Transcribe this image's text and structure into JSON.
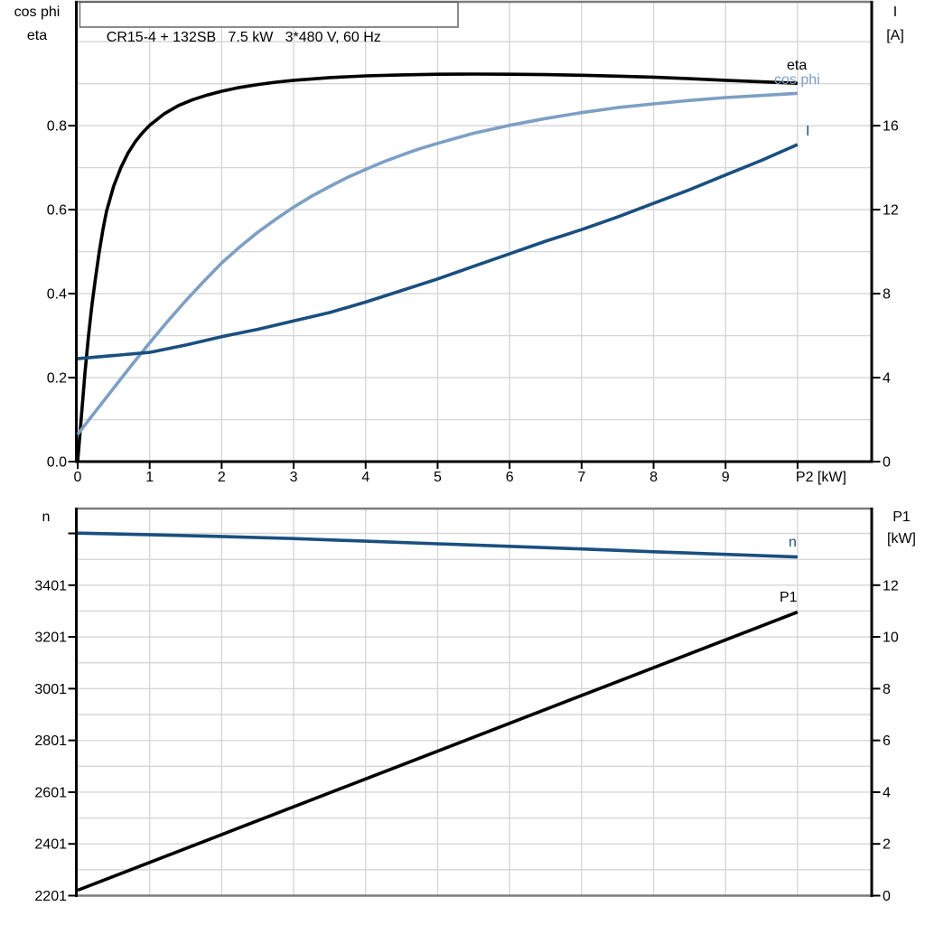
{
  "title": "CR15-4 + 132SB   7.5 kW   3*480 V, 60 Hz",
  "colors": {
    "eta": "#000000",
    "cos_phi": "#7d9fc3",
    "current": "#1a4f7f",
    "speed": "#1a4f7f",
    "p1": "#000000",
    "grid": "#d6d6d6",
    "frame": "#7d7d7d",
    "axis": "#000000"
  },
  "corner_labels": {
    "top_left_1": "cos phi",
    "top_left_2": "eta",
    "top_right_1": "I",
    "top_right_2": "[A]",
    "bottom_left_1": "n",
    "bottom_right_1": "P1",
    "bottom_right_2": "[kW]"
  },
  "chart_data": [
    {
      "id": "top",
      "type": "line",
      "title": "CR15-4 + 132SB   7.5 kW   3*480 V, 60 Hz",
      "xlabel": "P2 [kW]",
      "x": {
        "min": 0,
        "max": 11.03,
        "gridlines": [
          1,
          2,
          3,
          4,
          5,
          6,
          7,
          8,
          9,
          10
        ],
        "ticks": [
          {
            "v": 0,
            "label": "0"
          },
          {
            "v": 1,
            "label": "1"
          },
          {
            "v": 2,
            "label": "2"
          },
          {
            "v": 3,
            "label": "3"
          },
          {
            "v": 4,
            "label": "4"
          },
          {
            "v": 5,
            "label": "5"
          },
          {
            "v": 6,
            "label": "6"
          },
          {
            "v": 7,
            "label": "7"
          },
          {
            "v": 8,
            "label": "8"
          },
          {
            "v": 9,
            "label": "9"
          },
          {
            "v": 10,
            "label": "P2 [kW]",
            "align": "start"
          }
        ]
      },
      "y_left": {
        "name": "cos phi / eta",
        "min": 0,
        "max": 1.095,
        "gridlines": [
          0.1,
          0.2,
          0.3,
          0.4,
          0.5,
          0.6,
          0.7,
          0.8,
          0.9,
          1.0
        ],
        "ticks": [
          {
            "v": 0,
            "label": "0.0"
          },
          {
            "v": 0.2,
            "label": "0.2"
          },
          {
            "v": 0.4,
            "label": "0.4"
          },
          {
            "v": 0.6,
            "label": "0.6"
          },
          {
            "v": 0.8,
            "label": "0.8"
          }
        ]
      },
      "y_right": {
        "name": "I [A]",
        "min": 0,
        "max": 21.9,
        "ticks": [
          {
            "v": 0,
            "label": "0"
          },
          {
            "v": 4,
            "label": "4"
          },
          {
            "v": 8,
            "label": "8"
          },
          {
            "v": 12,
            "label": "12"
          },
          {
            "v": 16,
            "label": "16"
          }
        ]
      },
      "series": [
        {
          "name": "eta",
          "axis": "left",
          "color_key": "eta",
          "points": [
            [
              0,
              0
            ],
            [
              0.05,
              0.105
            ],
            [
              0.1,
              0.21
            ],
            [
              0.15,
              0.3
            ],
            [
              0.2,
              0.375
            ],
            [
              0.25,
              0.44
            ],
            [
              0.3,
              0.5
            ],
            [
              0.35,
              0.552
            ],
            [
              0.4,
              0.596
            ],
            [
              0.5,
              0.656
            ],
            [
              0.6,
              0.7
            ],
            [
              0.7,
              0.735
            ],
            [
              0.8,
              0.762
            ],
            [
              0.9,
              0.783
            ],
            [
              1.0,
              0.801
            ],
            [
              1.2,
              0.828
            ],
            [
              1.4,
              0.848
            ],
            [
              1.6,
              0.862
            ],
            [
              1.8,
              0.873
            ],
            [
              2.0,
              0.882
            ],
            [
              2.25,
              0.891
            ],
            [
              2.5,
              0.898
            ],
            [
              2.75,
              0.9035
            ],
            [
              3.0,
              0.908
            ],
            [
              3.5,
              0.9145
            ],
            [
              4.0,
              0.9185
            ],
            [
              4.5,
              0.921
            ],
            [
              5.0,
              0.9225
            ],
            [
              5.5,
              0.923
            ],
            [
              6.0,
              0.9225
            ],
            [
              6.5,
              0.9215
            ],
            [
              7.0,
              0.92
            ],
            [
              7.5,
              0.918
            ],
            [
              8.0,
              0.9155
            ],
            [
              8.5,
              0.912
            ],
            [
              9.0,
              0.908
            ],
            [
              9.5,
              0.9045
            ],
            [
              10.0,
              0.901
            ]
          ]
        },
        {
          "name": "cos phi",
          "axis": "left",
          "color_key": "cos_phi",
          "points": [
            [
              0,
              0.065
            ],
            [
              0.25,
              0.12
            ],
            [
              0.5,
              0.175
            ],
            [
              0.75,
              0.23
            ],
            [
              1,
              0.283
            ],
            [
              1.25,
              0.334
            ],
            [
              1.5,
              0.383
            ],
            [
              1.75,
              0.429
            ],
            [
              2,
              0.473
            ],
            [
              2.25,
              0.511
            ],
            [
              2.5,
              0.546
            ],
            [
              2.75,
              0.577
            ],
            [
              3,
              0.606
            ],
            [
              3.25,
              0.632
            ],
            [
              3.5,
              0.655
            ],
            [
              3.75,
              0.677
            ],
            [
              4,
              0.696
            ],
            [
              4.25,
              0.714
            ],
            [
              4.5,
              0.73
            ],
            [
              4.75,
              0.745
            ],
            [
              5,
              0.758
            ],
            [
              5.5,
              0.782
            ],
            [
              6,
              0.801
            ],
            [
              6.5,
              0.817
            ],
            [
              7,
              0.831
            ],
            [
              7.5,
              0.843
            ],
            [
              8,
              0.852
            ],
            [
              8.5,
              0.86
            ],
            [
              9,
              0.867
            ],
            [
              9.5,
              0.872
            ],
            [
              10,
              0.877
            ]
          ]
        },
        {
          "name": "I",
          "axis": "right",
          "color_key": "current",
          "points": [
            [
              0,
              4.9
            ],
            [
              0.5,
              5.05
            ],
            [
              1,
              5.2
            ],
            [
              1.5,
              5.55
            ],
            [
              2,
              5.95
            ],
            [
              2.5,
              6.3
            ],
            [
              3,
              6.7
            ],
            [
              3.5,
              7.1
            ],
            [
              4,
              7.6
            ],
            [
              4.5,
              8.15
            ],
            [
              5,
              8.7
            ],
            [
              5.5,
              9.3
            ],
            [
              6,
              9.9
            ],
            [
              6.5,
              10.5
            ],
            [
              7,
              11.05
            ],
            [
              7.5,
              11.65
            ],
            [
              8,
              12.3
            ],
            [
              8.5,
              12.95
            ],
            [
              9,
              13.65
            ],
            [
              9.5,
              14.35
            ],
            [
              10,
              15.1
            ]
          ]
        }
      ]
    },
    {
      "id": "bottom",
      "type": "line",
      "xlabel": "",
      "x": {
        "min": 0,
        "max": 11.03,
        "gridlines": [
          1,
          2,
          3,
          4,
          5,
          6,
          7,
          8,
          9,
          10
        ],
        "ticks": []
      },
      "y_left": {
        "name": "n [rpm]",
        "min": 2201,
        "max": 3697,
        "gridlines": [],
        "extra_tick": 3601,
        "ticks": [
          {
            "v": 3401,
            "label": "3401"
          },
          {
            "v": 3201,
            "label": "3201"
          },
          {
            "v": 3001,
            "label": "3001"
          },
          {
            "v": 2801,
            "label": "2801"
          },
          {
            "v": 2601,
            "label": "2601"
          },
          {
            "v": 2401,
            "label": "2401"
          },
          {
            "v": 2201,
            "label": "2201"
          }
        ]
      },
      "y_right": {
        "name": "P1 [kW]",
        "min": 0,
        "max": 14.96,
        "gridlines": [
          1,
          2,
          3,
          4,
          5,
          6,
          7,
          8,
          9,
          10,
          11,
          12,
          13,
          14
        ],
        "ticks": [
          {
            "v": 12,
            "label": "12"
          },
          {
            "v": 10,
            "label": "10"
          },
          {
            "v": 8,
            "label": "8"
          },
          {
            "v": 6,
            "label": "6"
          },
          {
            "v": 4,
            "label": "4"
          },
          {
            "v": 2,
            "label": "2"
          },
          {
            "v": 0,
            "label": "0"
          }
        ]
      },
      "series": [
        {
          "name": "n",
          "axis": "left",
          "color_key": "speed",
          "points": [
            [
              0,
              3602
            ],
            [
              1,
              3596
            ],
            [
              2,
              3589
            ],
            [
              3,
              3581
            ],
            [
              4,
              3571
            ],
            [
              5,
              3561
            ],
            [
              6,
              3551
            ],
            [
              7,
              3541
            ],
            [
              8,
              3530
            ],
            [
              9,
              3520
            ],
            [
              10,
              3510
            ]
          ]
        },
        {
          "name": "P1",
          "axis": "right",
          "color_key": "p1",
          "points": [
            [
              0,
              0.21
            ],
            [
              2,
              2.36
            ],
            [
              4,
              4.51
            ],
            [
              6,
              6.66
            ],
            [
              8,
              8.81
            ],
            [
              10,
              10.96
            ]
          ]
        }
      ]
    }
  ]
}
